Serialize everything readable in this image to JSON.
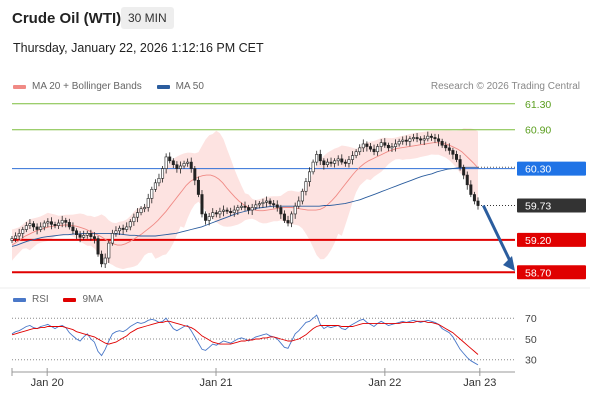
{
  "header": {
    "title": "Crude Oil (WTI)",
    "interval": "30 MIN",
    "timestamp": "Thursday, January 22, 2026 1:12:16 PM CET",
    "credit": "Research © 2026 Trading Central"
  },
  "legend_price": [
    {
      "label": "MA 20 + Bollinger Bands",
      "color": "#f08a85"
    },
    {
      "label": "MA 50",
      "color": "#2b5d9e"
    }
  ],
  "legend_rsi": [
    {
      "label": "RSI",
      "color": "#4a78c8"
    },
    {
      "label": "9MA",
      "color": "#e00000"
    }
  ],
  "chart_data": [
    {
      "type": "candlestick",
      "panel": "price",
      "ylim": [
        58.55,
        61.42
      ],
      "x_ticks": [
        {
          "label": "Jan 20",
          "t": 10
        },
        {
          "label": "Jan 21",
          "t": 58
        },
        {
          "label": "Jan 22",
          "t": 106
        },
        {
          "label": "Jan 23",
          "t": 133
        }
      ],
      "x_range": [
        0,
        143
      ],
      "levels": [
        {
          "value": "61.30",
          "color": "#7bbd3b",
          "style": "thin",
          "label_bg": "",
          "label_color": "#5a9e1e"
        },
        {
          "value": "60.90",
          "color": "#7bbd3b",
          "style": "thin",
          "label_bg": "",
          "label_color": "#5a9e1e"
        },
        {
          "value": "60.30",
          "color": "#2f6fd6",
          "style": "thin",
          "label_bg": "#1f73e6",
          "label_color": "#ffffff"
        },
        {
          "value": "59.73",
          "color": "#333333",
          "style": "dotted",
          "label_bg": "#333333",
          "label_color": "#ffffff"
        },
        {
          "value": "59.20",
          "color": "#e00000",
          "style": "thick",
          "label_bg": "#e00000",
          "label_color": "#ffffff"
        },
        {
          "value": "58.70",
          "color": "#e00000",
          "style": "thick",
          "label_bg": "#e00000",
          "label_color": "#ffffff"
        }
      ],
      "arrow": {
        "from": [
          134,
          59.73
        ],
        "to": [
          143,
          58.72
        ],
        "color": "#2b5d9e"
      },
      "close_series": [
        59.22,
        59.26,
        59.3,
        59.36,
        59.42,
        59.45,
        59.4,
        59.36,
        59.4,
        59.46,
        59.48,
        59.44,
        59.42,
        59.46,
        59.5,
        59.47,
        59.4,
        59.34,
        59.28,
        59.24,
        59.27,
        59.3,
        59.25,
        59.22,
        58.98,
        58.83,
        58.92,
        59.15,
        59.3,
        59.34,
        59.38,
        59.36,
        59.4,
        59.48,
        59.55,
        59.62,
        59.68,
        59.7,
        59.84,
        59.98,
        60.08,
        60.15,
        60.3,
        60.48,
        60.42,
        60.36,
        60.3,
        60.34,
        60.38,
        60.4,
        60.3,
        60.12,
        59.9,
        59.6,
        59.5,
        59.56,
        59.62,
        59.6,
        59.64,
        59.66,
        59.64,
        59.62,
        59.66,
        59.7,
        59.72,
        59.7,
        59.66,
        59.7,
        59.74,
        59.76,
        59.78,
        59.8,
        59.76,
        59.74,
        59.7,
        59.6,
        59.5,
        59.46,
        59.6,
        59.72,
        59.8,
        59.95,
        60.1,
        60.25,
        60.4,
        60.52,
        60.42,
        60.36,
        60.4,
        60.38,
        60.42,
        60.45,
        60.4,
        60.38,
        60.44,
        60.5,
        60.56,
        60.62,
        60.68,
        60.64,
        60.6,
        60.56,
        60.64,
        60.7,
        60.66,
        60.62,
        60.64,
        60.68,
        60.72,
        60.74,
        60.72,
        60.76,
        60.78,
        60.76,
        60.74,
        60.76,
        60.8,
        60.78,
        60.76,
        60.72,
        60.66,
        60.62,
        60.58,
        60.52,
        60.44,
        60.32,
        60.2,
        60.05,
        59.9,
        59.8,
        59.73
      ],
      "ma20_series": [
        59.12,
        59.16,
        59.2,
        59.25,
        59.28,
        59.31,
        59.34,
        59.36,
        59.38,
        59.4,
        59.41,
        59.42,
        59.42,
        59.43,
        59.43,
        59.42,
        59.41,
        59.39,
        59.37,
        59.34,
        59.31,
        59.28,
        59.25,
        59.21,
        59.17,
        59.14,
        59.12,
        59.12,
        59.14,
        59.17,
        59.21,
        59.25,
        59.29,
        59.34,
        59.39,
        59.44,
        59.5,
        59.57,
        59.64,
        59.72,
        59.8,
        59.88,
        59.96,
        60.04,
        60.1,
        60.14,
        60.17,
        60.19,
        60.2,
        60.2,
        60.18,
        60.14,
        60.08,
        60.0,
        59.93,
        59.86,
        59.8,
        59.75,
        59.71,
        59.68,
        59.66,
        59.65,
        59.65,
        59.66,
        59.67,
        59.68,
        59.69,
        59.7,
        59.7,
        59.7,
        59.69,
        59.68,
        59.67,
        59.66,
        59.66,
        59.66,
        59.67,
        59.7,
        59.75,
        59.81,
        59.88,
        59.96,
        60.04,
        60.12,
        60.2,
        60.27,
        60.33,
        60.38,
        60.42,
        60.45,
        60.48,
        60.51,
        60.54,
        60.57,
        60.59,
        60.61,
        60.62,
        60.63,
        60.64,
        60.65,
        60.66,
        60.67,
        60.68,
        60.69,
        60.7,
        60.7,
        60.69,
        60.68,
        60.66,
        60.63,
        60.6,
        60.56,
        60.5,
        60.44,
        60.38,
        60.31
      ],
      "ma50_series": [
        59.1,
        59.12,
        59.15,
        59.18,
        59.2,
        59.22,
        59.24,
        59.25,
        59.26,
        59.27,
        59.28,
        59.28,
        59.29,
        59.29,
        59.3,
        59.3,
        59.3,
        59.3,
        59.3,
        59.3,
        59.29,
        59.29,
        59.28,
        59.27,
        59.27,
        59.26,
        59.26,
        59.26,
        59.26,
        59.27,
        59.28,
        59.29,
        59.3,
        59.32,
        59.34,
        59.36,
        59.38,
        59.4,
        59.43,
        59.46,
        59.49,
        59.52,
        59.55,
        59.58,
        59.61,
        59.63,
        59.65,
        59.67,
        59.69,
        59.7,
        59.71,
        59.72,
        59.72,
        59.72,
        59.72,
        59.72,
        59.72,
        59.72,
        59.72,
        59.72,
        59.72,
        59.73,
        59.73,
        59.74,
        59.75,
        59.76,
        59.78,
        59.8,
        59.82,
        59.85,
        59.88,
        59.91,
        59.94,
        59.97,
        60.0,
        60.03,
        60.06,
        60.09,
        60.12,
        60.15,
        60.18,
        60.2,
        60.22,
        60.25,
        60.27,
        60.29,
        60.3,
        60.31,
        60.32,
        60.32,
        60.32,
        60.32
      ]
    },
    {
      "type": "line",
      "panel": "rsi",
      "ylim": [
        22,
        76
      ],
      "levels": [
        "70",
        "50",
        "30"
      ],
      "series": [
        {
          "name": "RSI",
          "color": "#4a78c8",
          "values": [
            55,
            57,
            58,
            60,
            62,
            63,
            61,
            60,
            62,
            63,
            64,
            62,
            60,
            62,
            63,
            61,
            56,
            53,
            50,
            48,
            52,
            55,
            50,
            47,
            38,
            34,
            40,
            48,
            55,
            57,
            58,
            57,
            59,
            62,
            64,
            66,
            65,
            66,
            68,
            69,
            68,
            66,
            67,
            70,
            65,
            60,
            58,
            60,
            62,
            63,
            58,
            52,
            46,
            40,
            39,
            42,
            45,
            44,
            46,
            48,
            47,
            46,
            48,
            50,
            51,
            50,
            48,
            50,
            52,
            53,
            54,
            55,
            53,
            52,
            50,
            46,
            42,
            41,
            48,
            55,
            58,
            62,
            66,
            67,
            70,
            73,
            64,
            60,
            62,
            61,
            62,
            63,
            60,
            59,
            62,
            64,
            66,
            68,
            69,
            66,
            64,
            62,
            65,
            67,
            65,
            63,
            64,
            65,
            66,
            67,
            66,
            67,
            68,
            67,
            66,
            67,
            68,
            67,
            66,
            64,
            60,
            58,
            56,
            52,
            46,
            40,
            36,
            32,
            29,
            27,
            25
          ]
        },
        {
          "name": "9MA",
          "color": "#e00000",
          "values": [
            54,
            55,
            56,
            57,
            58,
            59,
            60,
            60,
            61,
            61,
            62,
            62,
            62,
            62,
            62,
            61,
            60,
            59,
            57,
            56,
            55,
            54,
            53,
            52,
            50,
            48,
            46,
            45,
            46,
            47,
            49,
            51,
            53,
            56,
            58,
            60,
            61,
            62,
            63,
            64,
            65,
            66,
            66,
            67,
            67,
            66,
            65,
            64,
            63,
            62,
            61,
            59,
            56,
            53,
            51,
            49,
            47,
            46,
            45,
            45,
            45,
            45,
            46,
            47,
            48,
            48,
            49,
            49,
            50,
            50,
            51,
            51,
            52,
            52,
            51,
            50,
            49,
            48,
            48,
            49,
            50,
            52,
            54,
            57,
            60,
            62,
            63,
            63,
            63,
            63,
            63,
            63,
            62,
            62,
            62,
            62,
            63,
            64,
            65,
            65,
            65,
            65,
            65,
            65,
            65,
            65,
            65,
            65,
            65,
            66,
            66,
            66,
            66,
            67,
            67,
            67,
            66,
            66,
            65,
            64,
            62,
            60,
            58,
            56,
            53,
            50,
            47,
            44,
            41,
            38,
            35
          ]
        }
      ]
    }
  ]
}
